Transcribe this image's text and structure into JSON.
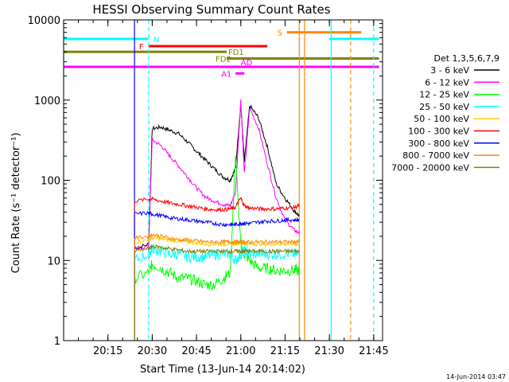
{
  "chart_data": {
    "type": "line",
    "title": "HESSI Observing Summary Count Rates",
    "xlabel": "Start Time (13-Jun-14 20:14:02)",
    "ylabel": "Count Rate (s⁻¹ detector⁻¹)",
    "y_scale": "log",
    "ylim": [
      1,
      10000
    ],
    "xlim_minutes": [
      20.0,
      21.8
    ],
    "x_tick_labels": [
      "20:15",
      "20:30",
      "20:45",
      "21:00",
      "21:15",
      "21:30",
      "21:45"
    ],
    "y_tick_labels": [
      "1",
      "10",
      "100",
      "1000",
      "10000"
    ],
    "legend_title": "Det 1,3,5,6,7,9",
    "legend_position": "right",
    "series": [
      {
        "name": "3 - 6 keV",
        "color": "#000000",
        "points": [
          [
            20.4,
            14
          ],
          [
            20.48,
            16
          ],
          [
            20.5,
            440
          ],
          [
            20.55,
            460
          ],
          [
            20.6,
            420
          ],
          [
            20.65,
            380
          ],
          [
            20.7,
            300
          ],
          [
            20.75,
            230
          ],
          [
            20.8,
            180
          ],
          [
            20.85,
            140
          ],
          [
            20.9,
            110
          ],
          [
            20.94,
            100
          ],
          [
            20.97,
            140
          ],
          [
            21.0,
            900
          ],
          [
            21.02,
            170
          ],
          [
            21.05,
            850
          ],
          [
            21.1,
            600
          ],
          [
            21.15,
            260
          ],
          [
            21.2,
            90
          ],
          [
            21.25,
            60
          ],
          [
            21.3,
            42
          ],
          [
            21.33,
            36
          ]
        ]
      },
      {
        "name": "6 - 12 keV",
        "color": "#ff00ff",
        "points": [
          [
            20.4,
            14
          ],
          [
            20.48,
            15
          ],
          [
            20.5,
            320
          ],
          [
            20.55,
            270
          ],
          [
            20.6,
            200
          ],
          [
            20.65,
            150
          ],
          [
            20.7,
            110
          ],
          [
            20.75,
            80
          ],
          [
            20.8,
            62
          ],
          [
            20.85,
            55
          ],
          [
            20.9,
            50
          ],
          [
            20.94,
            48
          ],
          [
            20.97,
            70
          ],
          [
            21.0,
            1000
          ],
          [
            21.02,
            120
          ],
          [
            21.05,
            800
          ],
          [
            21.1,
            450
          ],
          [
            21.15,
            160
          ],
          [
            21.2,
            60
          ],
          [
            21.25,
            32
          ],
          [
            21.3,
            24
          ],
          [
            21.33,
            22
          ]
        ]
      },
      {
        "name": "12 - 25 keV",
        "color": "#00ff00",
        "points": [
          [
            20.4,
            6
          ],
          [
            20.48,
            7
          ],
          [
            20.5,
            9
          ],
          [
            20.55,
            8
          ],
          [
            20.6,
            7
          ],
          [
            20.65,
            6
          ],
          [
            20.7,
            6
          ],
          [
            20.75,
            5.5
          ],
          [
            20.8,
            5
          ],
          [
            20.85,
            5
          ],
          [
            20.9,
            6
          ],
          [
            20.94,
            7
          ],
          [
            20.97,
            200
          ],
          [
            21.0,
            15
          ],
          [
            21.02,
            12
          ],
          [
            21.05,
            10
          ],
          [
            21.1,
            8
          ],
          [
            21.15,
            8
          ],
          [
            21.2,
            7.5
          ],
          [
            21.25,
            7.5
          ],
          [
            21.3,
            7.5
          ],
          [
            21.33,
            7.5
          ]
        ]
      },
      {
        "name": "25 - 50 keV",
        "color": "#00ffff",
        "points": [
          [
            20.4,
            10
          ],
          [
            20.48,
            12
          ],
          [
            20.5,
            14
          ],
          [
            20.55,
            13
          ],
          [
            20.6,
            12
          ],
          [
            20.65,
            12
          ],
          [
            20.7,
            11
          ],
          [
            20.75,
            11
          ],
          [
            20.8,
            11
          ],
          [
            20.85,
            12
          ],
          [
            20.9,
            12
          ],
          [
            20.94,
            12
          ],
          [
            20.97,
            10
          ],
          [
            21.0,
            12
          ],
          [
            21.02,
            13
          ],
          [
            21.05,
            12
          ],
          [
            21.1,
            12
          ],
          [
            21.15,
            12
          ],
          [
            21.2,
            12
          ],
          [
            21.25,
            12
          ],
          [
            21.3,
            12
          ],
          [
            21.33,
            12
          ]
        ]
      },
      {
        "name": "50 - 100 keV",
        "color": "#ffcc00",
        "points": [
          [
            20.4,
            17
          ],
          [
            20.48,
            18
          ],
          [
            20.5,
            19
          ],
          [
            20.55,
            18.5
          ],
          [
            20.6,
            18
          ],
          [
            20.65,
            17.5
          ],
          [
            20.7,
            17
          ],
          [
            20.75,
            16.5
          ],
          [
            20.8,
            16
          ],
          [
            20.85,
            16
          ],
          [
            20.9,
            16
          ],
          [
            20.94,
            16
          ],
          [
            20.97,
            16
          ],
          [
            21.0,
            17
          ],
          [
            21.02,
            16
          ],
          [
            21.05,
            16
          ],
          [
            21.1,
            16
          ],
          [
            21.15,
            16
          ],
          [
            21.2,
            16
          ],
          [
            21.25,
            16
          ],
          [
            21.3,
            16
          ],
          [
            21.33,
            16
          ]
        ]
      },
      {
        "name": "100 - 300 keV",
        "color": "#ff0000",
        "points": [
          [
            20.4,
            55
          ],
          [
            20.48,
            58
          ],
          [
            20.5,
            58
          ],
          [
            20.55,
            55
          ],
          [
            20.6,
            52
          ],
          [
            20.65,
            50
          ],
          [
            20.7,
            48
          ],
          [
            20.75,
            46
          ],
          [
            20.8,
            44
          ],
          [
            20.85,
            43
          ],
          [
            20.9,
            43
          ],
          [
            20.94,
            44
          ],
          [
            20.97,
            46
          ],
          [
            21.0,
            60
          ],
          [
            21.02,
            48
          ],
          [
            21.05,
            45
          ],
          [
            21.1,
            44
          ],
          [
            21.15,
            44
          ],
          [
            21.2,
            44
          ],
          [
            21.25,
            45
          ],
          [
            21.3,
            46
          ],
          [
            21.33,
            48
          ]
        ]
      },
      {
        "name": "300 - 800 keV",
        "color": "#0000ff",
        "points": [
          [
            20.4,
            38
          ],
          [
            20.48,
            39
          ],
          [
            20.5,
            38
          ],
          [
            20.55,
            36
          ],
          [
            20.6,
            34
          ],
          [
            20.65,
            33
          ],
          [
            20.7,
            32
          ],
          [
            20.75,
            31
          ],
          [
            20.8,
            30
          ],
          [
            20.85,
            29
          ],
          [
            20.9,
            28
          ],
          [
            20.94,
            28
          ],
          [
            20.97,
            28
          ],
          [
            21.0,
            29
          ],
          [
            21.02,
            29
          ],
          [
            21.05,
            29
          ],
          [
            21.1,
            30
          ],
          [
            21.15,
            31
          ],
          [
            21.2,
            31
          ],
          [
            21.25,
            32
          ],
          [
            21.3,
            32
          ],
          [
            21.33,
            32
          ]
        ]
      },
      {
        "name": "800 - 7000 keV",
        "color": "#ff8800",
        "points": [
          [
            20.4,
            19
          ],
          [
            20.48,
            20
          ],
          [
            20.5,
            21
          ],
          [
            20.55,
            20
          ],
          [
            20.6,
            19
          ],
          [
            20.65,
            18
          ],
          [
            20.7,
            18
          ],
          [
            20.75,
            17.5
          ],
          [
            20.8,
            17
          ],
          [
            20.85,
            17
          ],
          [
            20.9,
            17
          ],
          [
            20.94,
            17
          ],
          [
            20.97,
            17
          ],
          [
            21.0,
            17
          ],
          [
            21.02,
            17
          ],
          [
            21.05,
            17
          ],
          [
            21.1,
            17
          ],
          [
            21.15,
            17
          ],
          [
            21.2,
            17
          ],
          [
            21.25,
            17
          ],
          [
            21.3,
            17
          ],
          [
            21.33,
            17
          ]
        ]
      },
      {
        "name": "7000 - 20000 keV",
        "color": "#808000",
        "points": [
          [
            20.4,
            13
          ],
          [
            20.48,
            14
          ],
          [
            20.5,
            15
          ],
          [
            20.55,
            14.5
          ],
          [
            20.6,
            14
          ],
          [
            20.65,
            13.5
          ],
          [
            20.7,
            13
          ],
          [
            20.75,
            13
          ],
          [
            20.8,
            13
          ],
          [
            20.85,
            13
          ],
          [
            20.9,
            13
          ],
          [
            20.94,
            13
          ],
          [
            20.97,
            13
          ],
          [
            21.0,
            13
          ],
          [
            21.02,
            13
          ],
          [
            21.05,
            13
          ],
          [
            21.1,
            13
          ],
          [
            21.15,
            13
          ],
          [
            21.2,
            13
          ],
          [
            21.25,
            13
          ],
          [
            21.3,
            13
          ],
          [
            21.33,
            13
          ]
        ]
      }
    ],
    "status_bars": [
      {
        "label": "N",
        "color": "#00ffff",
        "y": 5800,
        "segments": [
          [
            20.0,
            20.48
          ],
          [
            21.5,
            21.78
          ]
        ]
      },
      {
        "label": "F",
        "color": "#ff0000",
        "y": 4700,
        "segments": [
          [
            20.48,
            21.15
          ]
        ]
      },
      {
        "label": "FD1",
        "color": "#808000",
        "y": 4000,
        "segments": [
          [
            20.0,
            20.92
          ]
        ]
      },
      {
        "label": "FD2",
        "color": "#808000",
        "y": 3300,
        "segments": [
          [
            20.92,
            21.78
          ]
        ]
      },
      {
        "label": "AD",
        "color": "#ff00ff",
        "y": 2600,
        "segments": [
          [
            20.0,
            21.78
          ]
        ]
      },
      {
        "label": "A1",
        "color": "#ff00ff",
        "y": 2150,
        "segments": [
          [
            20.97,
            21.02
          ]
        ]
      },
      {
        "label": "S",
        "color": "#ff8800",
        "y": 7000,
        "segments": [
          [
            21.26,
            21.68
          ]
        ]
      }
    ],
    "vertical_lines": [
      {
        "color": "#00ffff",
        "x": 20.0,
        "style": "solid"
      },
      {
        "color": "#0000ff",
        "x": 20.4,
        "style": "solid"
      },
      {
        "color": "#00ffff",
        "x": 20.48,
        "style": "dashed"
      },
      {
        "color": "#ff8800",
        "x": 21.33,
        "style": "solid"
      },
      {
        "color": "#ff8800",
        "x": 21.36,
        "style": "solid"
      },
      {
        "color": "#00ffff",
        "x": 21.51,
        "style": "solid"
      },
      {
        "color": "#ff8800",
        "x": 21.62,
        "style": "dashed"
      },
      {
        "color": "#00ffff",
        "x": 21.75,
        "style": "dashed"
      }
    ]
  },
  "footer": {
    "timestamp": "14-Jun-2014 03:47"
  }
}
